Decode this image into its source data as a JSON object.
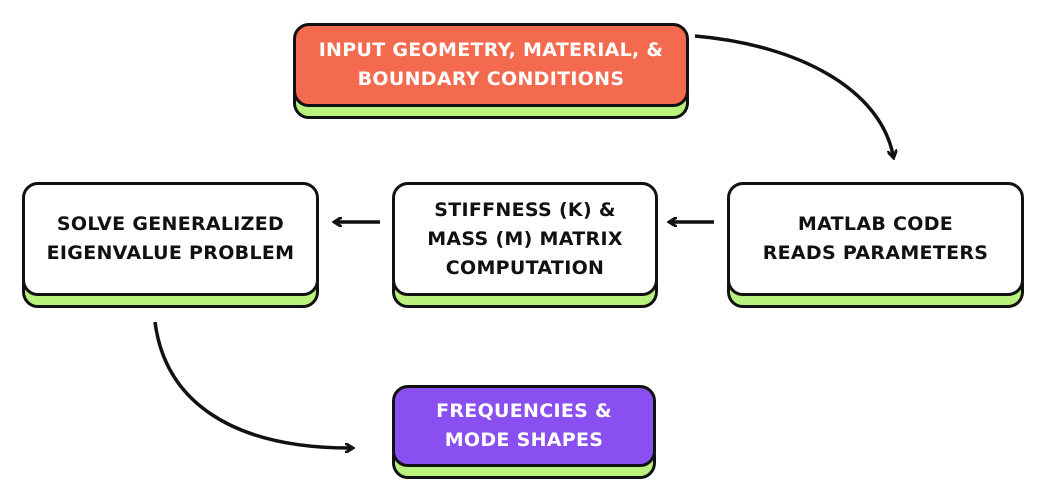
{
  "colors": {
    "input": "#f36a4e",
    "output": "#8a4ff0",
    "shadow": "#b9f27c",
    "process": "#ffffff",
    "stroke": "#111111"
  },
  "nodes": {
    "input": "INPUT GEOMETRY, MATERIAL, & BOUNDARY CONDITIONS",
    "matlab": "MATLAB CODE READS PARAMETERS",
    "matrix": "STIFFNESS (K) & MASS (M) MATRIX COMPUTATION",
    "solve": "SOLVE GENERALIZED EIGENVALUE PROBLEM",
    "output": "FREQUENCIES & MODE SHAPES"
  },
  "edges": [
    {
      "from": "input",
      "to": "matlab"
    },
    {
      "from": "matlab",
      "to": "matrix"
    },
    {
      "from": "matrix",
      "to": "solve"
    },
    {
      "from": "solve",
      "to": "output"
    }
  ]
}
